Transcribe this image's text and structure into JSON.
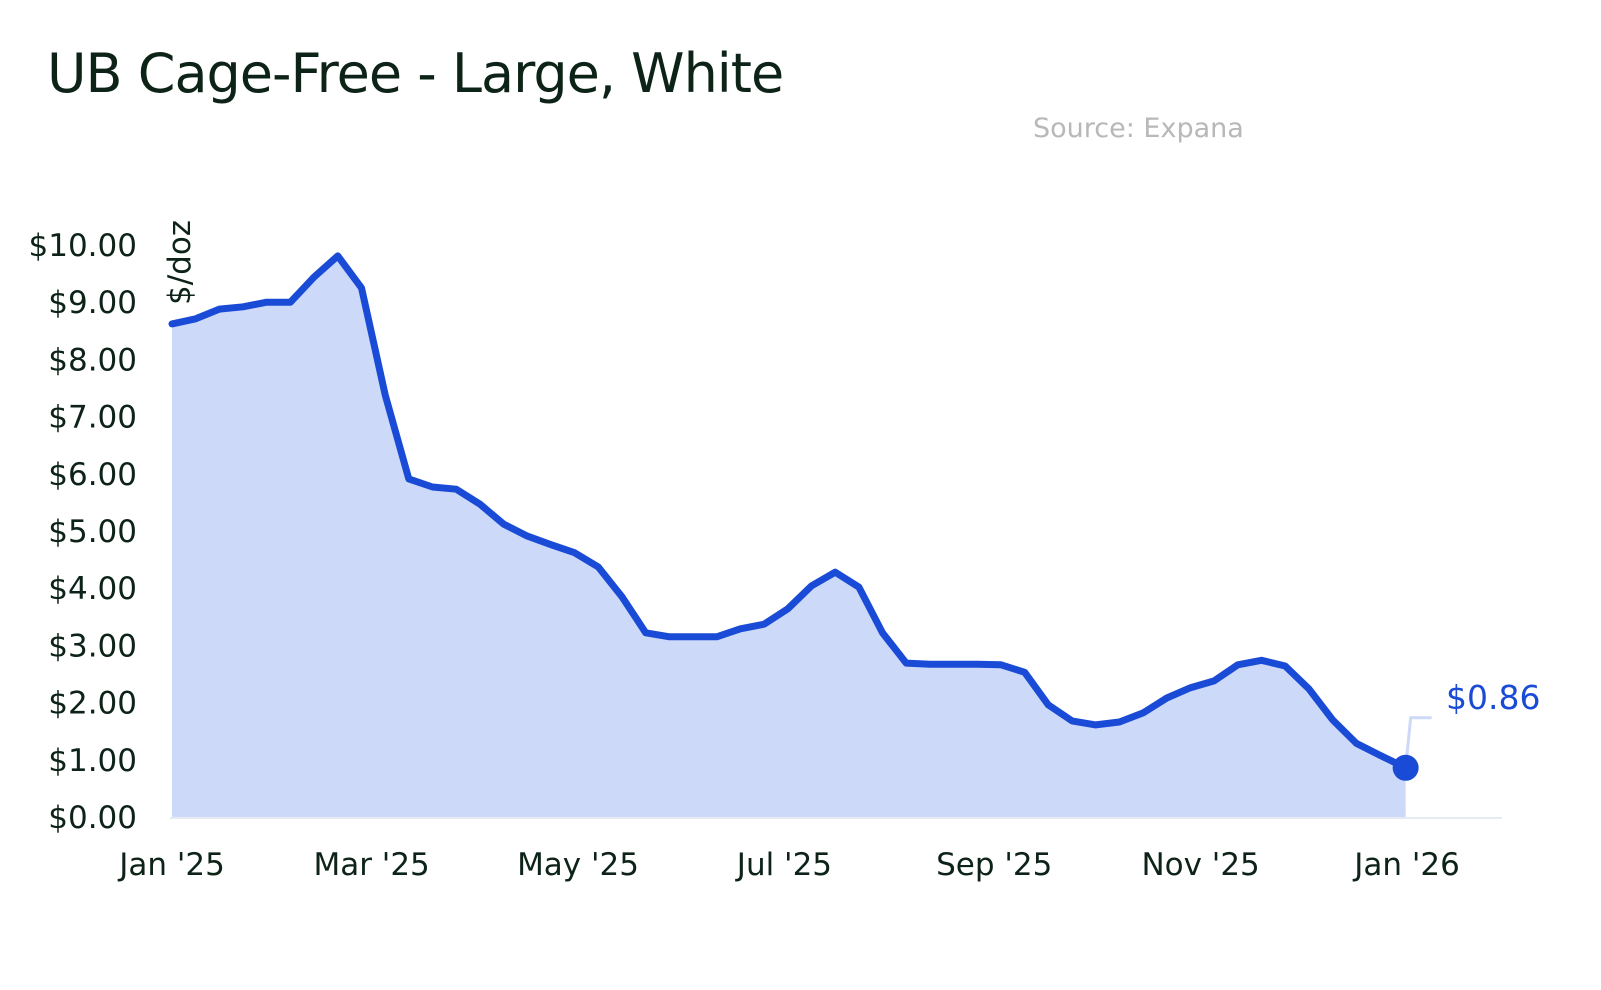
{
  "title": "UB Cage-Free - Large, White",
  "source": "Source: Expana",
  "chart_data": {
    "type": "area",
    "title": "UB Cage-Free - Large, White",
    "ylabel": "$/doz",
    "xlabel": "",
    "x_unit": "days since Jan 1 2025 (weekly)",
    "ylim": [
      0,
      10
    ],
    "xlim": [
      0,
      365
    ],
    "grid": false,
    "yticks": [
      0,
      1,
      2,
      3,
      4,
      5,
      6,
      7,
      8,
      9,
      10
    ],
    "ytick_labels": [
      "$0.00",
      "$1.00",
      "$2.00",
      "$3.00",
      "$4.00",
      "$5.00",
      "$6.00",
      "$7.00",
      "$8.00",
      "$9.00",
      "$10.00"
    ],
    "xticks": [
      0,
      59,
      120,
      181,
      243,
      304,
      365
    ],
    "xtick_labels": [
      "Jan '25",
      "Mar '25",
      "May '25",
      "Jul '25",
      "Sep '25",
      "Nov '25",
      "Jan '26"
    ],
    "series": [
      {
        "name": "UB Cage-Free - Large, White",
        "color": "#1a4bd6",
        "fill": "#cdd9f9",
        "values": [
          8.62,
          8.71,
          8.88,
          8.92,
          9.0,
          9.0,
          9.44,
          9.81,
          9.25,
          7.38,
          5.91,
          5.77,
          5.73,
          5.47,
          5.12,
          4.91,
          4.76,
          4.62,
          4.37,
          3.85,
          3.22,
          3.15,
          3.15,
          3.15,
          3.29,
          3.37,
          3.64,
          4.04,
          4.28,
          4.02,
          3.22,
          2.69,
          2.67,
          2.67,
          2.67,
          2.66,
          2.53,
          1.96,
          1.68,
          1.61,
          1.66,
          1.82,
          2.08,
          2.26,
          2.38,
          2.66,
          2.74,
          2.64,
          2.24,
          1.7,
          1.29,
          1.08,
          0.86
        ]
      }
    ],
    "annotation": {
      "label": "$0.86",
      "value": 0.86
    }
  }
}
